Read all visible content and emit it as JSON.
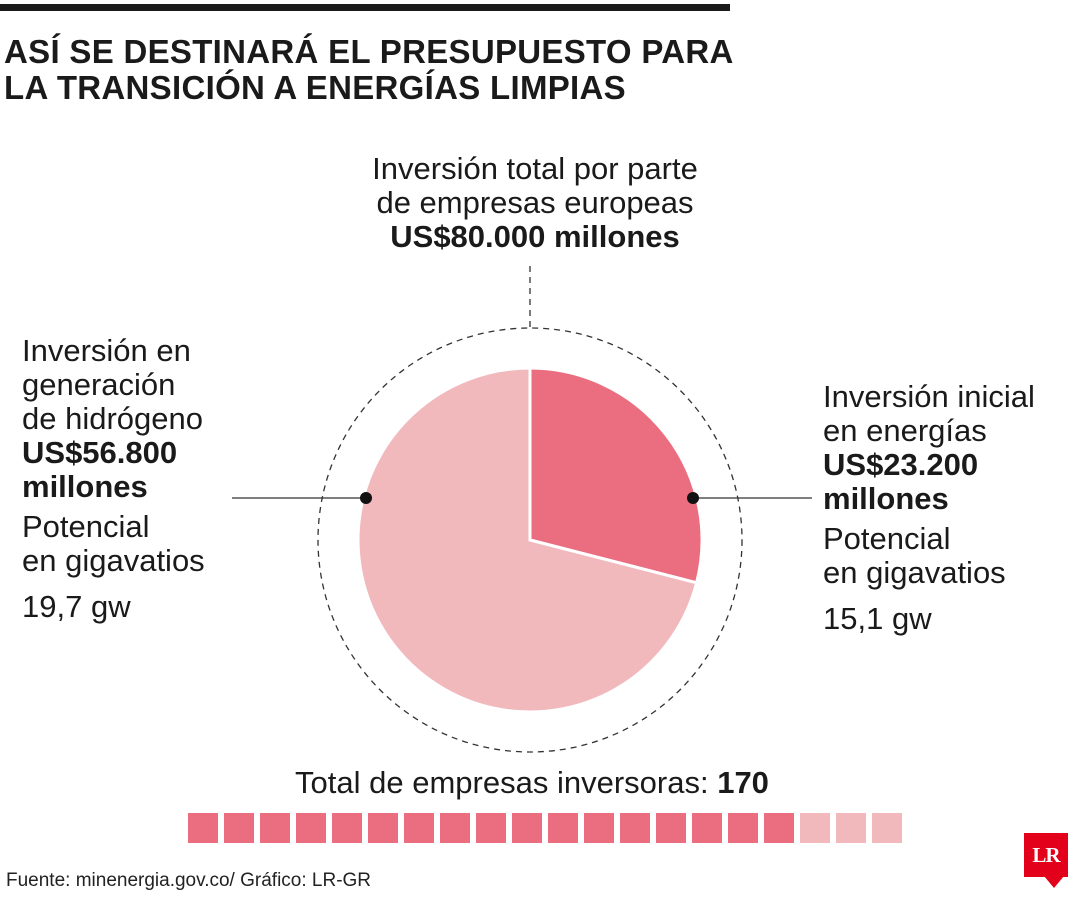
{
  "title": {
    "line1": "ASÍ SE DESTINARÁ EL PRESUPUESTO PARA",
    "line2": "LA TRANSICIÓN A ENERGÍAS LIMPIAS"
  },
  "total": {
    "line1": "Inversión total por parte",
    "line2": "de empresas europeas",
    "amount": "US$80.000 millones"
  },
  "left": {
    "line1": "Inversión en",
    "line2": "generación",
    "line3": "de hidrógeno",
    "amount1": "US$56.800",
    "amount2": "millones",
    "potential1": "Potencial",
    "potential2": "en gigavatios",
    "gw": "19,7 gw"
  },
  "right": {
    "line1": "Inversión inicial",
    "line2": "en energías",
    "amount1": "US$23.200",
    "amount2": "millones",
    "potential1": "Potencial",
    "potential2": "en gigavatios",
    "gw": "15,1 gw"
  },
  "companies": {
    "label": "Total de empresas inversoras:",
    "count": "170",
    "filled_blocks": 17,
    "total_blocks": 20
  },
  "source": "Fuente: minenergia.gov.co/ Gráfico: LR-GR",
  "logo": "LR",
  "colors": {
    "dark_pink": "#ea6e80",
    "light_pink": "#f2b9bd",
    "logo_red": "#e2001a"
  },
  "chart_data": {
    "type": "pie",
    "title": "Inversión total por parte de empresas europeas",
    "total": 80000,
    "unit": "US$ millones",
    "categories": [
      "Inversión inicial en energías",
      "Inversión en generación de hidrógeno"
    ],
    "values": [
      23200,
      56800
    ],
    "gigawatts": [
      15.1,
      19.7
    ]
  }
}
